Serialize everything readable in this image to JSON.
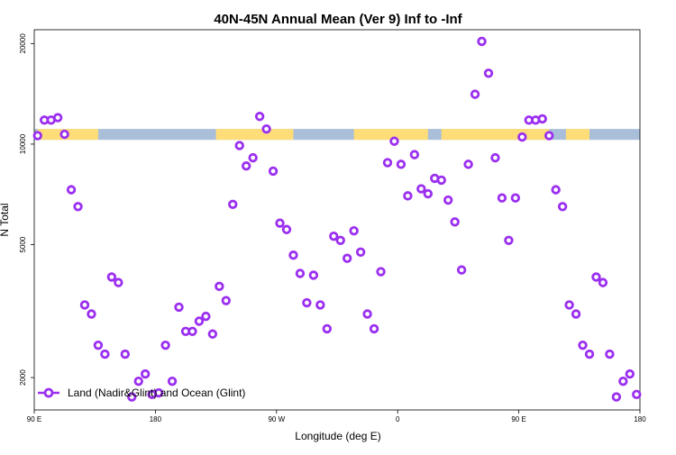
{
  "chart_data": {
    "type": "scatter",
    "title": "40N-45N Annual Mean (Ver 9)   Inf to -Inf",
    "xlabel": "Longitude (deg E)",
    "ylabel": "N Total",
    "yscale": "log",
    "xlim": [
      0,
      720
    ],
    "ylim": [
      1600,
      22000
    ],
    "x_ticks": [
      {
        "value": 0,
        "label": "90 E"
      },
      {
        "value": 144,
        "label": "180"
      },
      {
        "value": 288,
        "label": "90 W"
      },
      {
        "value": 432,
        "label": "0"
      },
      {
        "value": 576,
        "label": "90 E"
      },
      {
        "value": 720,
        "label": "180"
      }
    ],
    "y_ticks": [
      {
        "value": 2000,
        "label": "2000"
      },
      {
        "value": 5000,
        "label": "5000"
      },
      {
        "value": 10000,
        "label": "10000"
      },
      {
        "value": 20000,
        "label": "20000"
      }
    ],
    "legend": {
      "label": "Land (Nadir&Glint) and Ocean (Glint)",
      "position": "bottom-left"
    },
    "series": [
      {
        "name": "Land (Nadir&Glint) and Ocean (Glint)",
        "color": "#9b2ff0",
        "x": [
          4,
          12,
          20,
          28,
          36,
          44,
          52,
          60,
          68,
          76,
          84,
          92,
          100,
          108,
          116,
          124,
          132,
          140,
          148,
          156,
          164,
          172,
          180,
          188,
          196,
          204,
          212,
          220,
          228,
          236,
          244,
          252,
          260,
          268,
          276,
          284,
          292,
          300,
          308,
          316,
          324,
          332,
          340,
          348,
          356,
          364,
          372,
          380,
          388,
          396,
          404,
          412,
          420,
          428,
          436,
          444,
          452,
          460,
          468,
          476,
          484,
          492,
          500,
          508,
          516,
          524,
          532,
          540,
          548,
          556,
          564,
          572,
          580,
          588,
          596,
          604,
          612,
          620,
          628,
          636,
          644,
          652,
          660,
          668,
          676,
          684,
          692,
          700,
          708,
          716
        ],
        "y": [
          10600,
          11800,
          11800,
          12000,
          10700,
          7300,
          6500,
          3300,
          3100,
          2500,
          2350,
          4000,
          3850,
          2350,
          1750,
          1950,
          2050,
          1780,
          1800,
          2500,
          1950,
          3250,
          2750,
          2750,
          2950,
          3050,
          2700,
          3750,
          3400,
          6600,
          9900,
          8600,
          9100,
          12100,
          11100,
          8300,
          5800,
          5550,
          4650,
          4100,
          3350,
          4050,
          3300,
          2800,
          5300,
          5150,
          4550,
          5500,
          4750,
          3100,
          2800,
          4150,
          8800,
          10200,
          8700,
          7000,
          9300,
          7350,
          7100,
          7900,
          7800,
          6800,
          5850,
          4200,
          8700,
          14100,
          20300,
          16300,
          9100,
          6900,
          5150,
          6900,
          10500,
          11800,
          11800,
          11900,
          10600,
          7300,
          6500,
          3300,
          3100,
          2500,
          2350,
          4000,
          3850,
          2350,
          1750,
          1950,
          2050,
          1780
        ]
      }
    ],
    "land_mask": {
      "y_range": [
        10300,
        11100
      ],
      "ocean_color": "#a9bed8",
      "land_color": "#fedd78",
      "land_segments": [
        [
          4,
          76
        ],
        [
          216,
          308
        ],
        [
          380,
          468
        ],
        [
          484,
          612
        ],
        [
          632,
          660
        ]
      ]
    }
  }
}
